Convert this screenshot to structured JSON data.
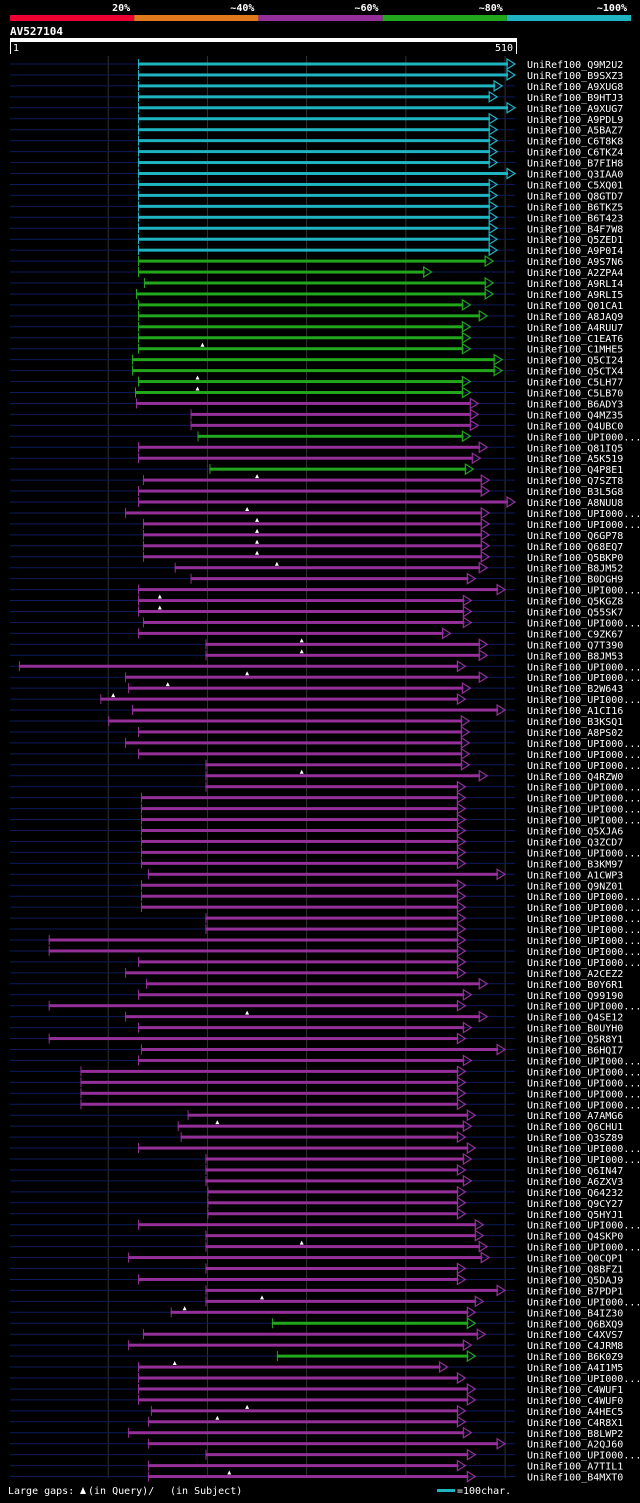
{
  "chart_data": {
    "type": "blast-alignment-overview",
    "query": {
      "name": "AV527104",
      "start": 1,
      "end": 510,
      "start_label": "1",
      "end_label": "510"
    },
    "color_scale": [
      {
        "label": "20%",
        "color": "#ee0033"
      },
      {
        "label": "~40%",
        "color": "#e07a1c"
      },
      {
        "label": "~60%",
        "color": "#952f99"
      },
      {
        "label": "~80%",
        "color": "#21a61c"
      },
      {
        "label": "~100%",
        "color": "#1fb4c1"
      }
    ],
    "footer": {
      "gaps_label": "Large gaps:",
      "gaps_query": "(in Query)/",
      "gaps_subject": "(in Subject)",
      "scale_label": "=100char."
    },
    "hits": [
      {
        "name": "UniRef100_Q9M2U2",
        "start": 130,
        "end": 510,
        "identity": "~100%",
        "arrow": "long"
      },
      {
        "name": "UniRef100_B9SXZ3",
        "start": 130,
        "end": 510,
        "identity": "~100%",
        "arrow": "long"
      },
      {
        "name": "UniRef100_A9XUG8",
        "start": 130,
        "end": 497,
        "identity": "~100%"
      },
      {
        "name": "UniRef100_B9HTJ3",
        "start": 130,
        "end": 492,
        "identity": "~100%"
      },
      {
        "name": "UniRef100_A9XUG7",
        "start": 130,
        "end": 510,
        "identity": "~100%",
        "arrow": "long"
      },
      {
        "name": "UniRef100_A9PDL9",
        "start": 130,
        "end": 492,
        "identity": "~100%"
      },
      {
        "name": "UniRef100_A5BAZ7",
        "start": 130,
        "end": 492,
        "identity": "~100%"
      },
      {
        "name": "UniRef100_C6T8K8",
        "start": 130,
        "end": 492,
        "identity": "~100%"
      },
      {
        "name": "UniRef100_C6TKZ4",
        "start": 130,
        "end": 492,
        "identity": "~100%"
      },
      {
        "name": "UniRef100_B7FIH8",
        "start": 130,
        "end": 492,
        "identity": "~100%"
      },
      {
        "name": "UniRef100_Q3IAA0",
        "start": 130,
        "end": 510,
        "identity": "~100%",
        "arrow": "long"
      },
      {
        "name": "UniRef100_C5XQ01",
        "start": 130,
        "end": 492,
        "identity": "~100%"
      },
      {
        "name": "UniRef100_Q8GTD7",
        "start": 130,
        "end": 492,
        "identity": "~100%"
      },
      {
        "name": "UniRef100_B6TKZ5",
        "start": 130,
        "end": 492,
        "identity": "~100%"
      },
      {
        "name": "UniRef100_B6T423",
        "start": 130,
        "end": 492,
        "identity": "~100%"
      },
      {
        "name": "UniRef100_B4F7W8",
        "start": 130,
        "end": 492,
        "identity": "~100%"
      },
      {
        "name": "UniRef100_Q5ZED1",
        "start": 130,
        "end": 492,
        "identity": "~100%"
      },
      {
        "name": "UniRef100_A9P0I4",
        "start": 130,
        "end": 492,
        "identity": "~100%"
      },
      {
        "name": "UniRef100_A9S7N6",
        "start": 130,
        "end": 488,
        "identity": "~80%"
      },
      {
        "name": "UniRef100_A2ZPA4",
        "start": 130,
        "end": 426,
        "identity": "~80%"
      },
      {
        "name": "UniRef100_A9RLI4",
        "start": 136,
        "end": 488,
        "identity": "~80%"
      },
      {
        "name": "UniRef100_A9RLI5",
        "start": 128,
        "end": 488,
        "identity": "~80%"
      },
      {
        "name": "UniRef100_Q01CA1",
        "start": 130,
        "end": 465,
        "identity": "~80%"
      },
      {
        "name": "UniRef100_A8JAQ9",
        "start": 130,
        "end": 482,
        "identity": "~80%"
      },
      {
        "name": "UniRef100_A4RUU7",
        "start": 130,
        "end": 465,
        "identity": "~80%"
      },
      {
        "name": "UniRef100_C1EAT6",
        "start": 130,
        "end": 465,
        "identity": "~80%"
      },
      {
        "name": "UniRef100_C1MHE5",
        "start": 130,
        "end": 465,
        "identity": "~80%",
        "marker": 195
      },
      {
        "name": "UniRef100_Q5CI24",
        "start": 124,
        "end": 497,
        "identity": "~80%"
      },
      {
        "name": "UniRef100_Q5CTX4",
        "start": 124,
        "end": 497,
        "identity": "~80%"
      },
      {
        "name": "UniRef100_C5LH77",
        "start": 130,
        "end": 465,
        "identity": "~80%",
        "marker": 190
      },
      {
        "name": "UniRef100_C5LB70",
        "start": 127,
        "end": 465,
        "identity": "~80%",
        "marker": 190
      },
      {
        "name": "UniRef100_B6ADY3",
        "start": 128,
        "end": 473,
        "identity": "~60%"
      },
      {
        "name": "UniRef100_Q4MZ35",
        "start": 183,
        "end": 473,
        "identity": "~60%"
      },
      {
        "name": "UniRef100_Q4UBC0",
        "start": 183,
        "end": 473,
        "identity": "~60%"
      },
      {
        "name": "UniRef100_UPI000...",
        "start": 190,
        "end": 465,
        "identity": "~80%"
      },
      {
        "name": "UniRef100_Q81IQ5",
        "start": 130,
        "end": 482,
        "identity": "~60%"
      },
      {
        "name": "UniRef100_A5K519",
        "start": 130,
        "end": 475,
        "identity": "~60%"
      },
      {
        "name": "UniRef100_Q4P8E1",
        "start": 202,
        "end": 468,
        "identity": "~80%"
      },
      {
        "name": "UniRef100_Q7SZT8",
        "start": 135,
        "end": 484,
        "identity": "~60%",
        "marker": 250
      },
      {
        "name": "UniRef100_B3L5G8",
        "start": 130,
        "end": 484,
        "identity": "~60%"
      },
      {
        "name": "UniRef100_A8NUU8",
        "start": 130,
        "end": 510,
        "identity": "~60%",
        "arrow": "long"
      },
      {
        "name": "UniRef100_UPI000...",
        "start": 117,
        "end": 484,
        "identity": "~60%",
        "marker": 240
      },
      {
        "name": "UniRef100_UPI000...",
        "start": 135,
        "end": 484,
        "identity": "~60%",
        "marker": 250
      },
      {
        "name": "UniRef100_Q6GP78",
        "start": 135,
        "end": 484,
        "identity": "~60%",
        "marker": 250
      },
      {
        "name": "UniRef100_Q68EQ7",
        "start": 135,
        "end": 484,
        "identity": "~60%",
        "marker": 250
      },
      {
        "name": "UniRef100_Q5BKP0",
        "start": 135,
        "end": 484,
        "identity": "~60%",
        "marker": 250
      },
      {
        "name": "UniRef100_B8JM52",
        "start": 167,
        "end": 482,
        "identity": "~60%",
        "marker": 270
      },
      {
        "name": "UniRef100_B0DGH9",
        "start": 183,
        "end": 470,
        "identity": "~60%"
      },
      {
        "name": "UniRef100_UPI000...",
        "start": 130,
        "end": 500,
        "identity": "~60%"
      },
      {
        "name": "UniRef100_Q5KGZ8",
        "start": 130,
        "end": 466,
        "identity": "~60%",
        "marker": 152
      },
      {
        "name": "UniRef100_Q55SK7",
        "start": 130,
        "end": 466,
        "identity": "~60%",
        "marker": 152
      },
      {
        "name": "UniRef100_UPI000...",
        "start": 135,
        "end": 466,
        "identity": "~60%"
      },
      {
        "name": "UniRef100_C9ZK67",
        "start": 130,
        "end": 445,
        "identity": "~60%"
      },
      {
        "name": "UniRef100_Q7T390",
        "start": 198,
        "end": 482,
        "identity": "~60%",
        "marker": 295
      },
      {
        "name": "UniRef100_B8JM53",
        "start": 198,
        "end": 482,
        "identity": "~60%",
        "marker": 295
      },
      {
        "name": "UniRef100_UPI000...",
        "start": 10,
        "end": 460,
        "identity": "~60%"
      },
      {
        "name": "UniRef100_UPI000...",
        "start": 117,
        "end": 482,
        "identity": "~60%",
        "marker": 240
      },
      {
        "name": "UniRef100_B2W643",
        "start": 120,
        "end": 465,
        "identity": "~60%",
        "marker": 160
      },
      {
        "name": "UniRef100_UPI000...",
        "start": 92,
        "end": 460,
        "identity": "~60%",
        "marker": 105
      },
      {
        "name": "UniRef100_A1CI16",
        "start": 124,
        "end": 500,
        "identity": "~60%"
      },
      {
        "name": "UniRef100_B3KSQ1",
        "start": 100,
        "end": 464,
        "identity": "~60%"
      },
      {
        "name": "UniRef100_A8PS02",
        "start": 130,
        "end": 464,
        "identity": "~60%"
      },
      {
        "name": "UniRef100_UPI000...",
        "start": 117,
        "end": 464,
        "identity": "~60%"
      },
      {
        "name": "UniRef100_UPI000...",
        "start": 130,
        "end": 464,
        "identity": "~60%"
      },
      {
        "name": "UniRef100_UPI000...",
        "start": 198,
        "end": 464,
        "identity": "~60%"
      },
      {
        "name": "UniRef100_Q4RZW0",
        "start": 198,
        "end": 482,
        "identity": "~60%",
        "marker": 295
      },
      {
        "name": "UniRef100_UPI000...",
        "start": 198,
        "end": 460,
        "identity": "~60%"
      },
      {
        "name": "UniRef100_UPI000...",
        "start": 133,
        "end": 460,
        "identity": "~60%"
      },
      {
        "name": "UniRef100_UPI000...",
        "start": 133,
        "end": 460,
        "identity": "~60%"
      },
      {
        "name": "UniRef100_UPI000...",
        "start": 133,
        "end": 460,
        "identity": "~60%"
      },
      {
        "name": "UniRef100_Q5XJA6",
        "start": 133,
        "end": 460,
        "identity": "~60%"
      },
      {
        "name": "UniRef100_Q3ZCD7",
        "start": 133,
        "end": 460,
        "identity": "~60%"
      },
      {
        "name": "UniRef100_UPI000...",
        "start": 133,
        "end": 460,
        "identity": "~60%"
      },
      {
        "name": "UniRef100_B3KM97",
        "start": 133,
        "end": 460,
        "identity": "~60%"
      },
      {
        "name": "UniRef100_A1CWP3",
        "start": 140,
        "end": 500,
        "identity": "~60%"
      },
      {
        "name": "UniRef100_Q9NZ01",
        "start": 133,
        "end": 460,
        "identity": "~60%"
      },
      {
        "name": "UniRef100_UPI000...",
        "start": 133,
        "end": 460,
        "identity": "~60%"
      },
      {
        "name": "UniRef100_UPI000...",
        "start": 133,
        "end": 460,
        "identity": "~60%"
      },
      {
        "name": "UniRef100_UPI000...",
        "start": 198,
        "end": 460,
        "identity": "~60%"
      },
      {
        "name": "UniRef100_UPI000...",
        "start": 198,
        "end": 460,
        "identity": "~60%"
      },
      {
        "name": "UniRef100_UPI000...",
        "start": 40,
        "end": 460,
        "identity": "~60%"
      },
      {
        "name": "UniRef100_UPI000...",
        "start": 40,
        "end": 460,
        "identity": "~60%"
      },
      {
        "name": "UniRef100_UPI000...",
        "start": 130,
        "end": 460,
        "identity": "~60%"
      },
      {
        "name": "UniRef100_A2CEZ2",
        "start": 117,
        "end": 460,
        "identity": "~60%"
      },
      {
        "name": "UniRef100_B0Y6R1",
        "start": 138,
        "end": 482,
        "identity": "~60%"
      },
      {
        "name": "UniRef100_Q99190",
        "start": 130,
        "end": 466,
        "identity": "~60%"
      },
      {
        "name": "UniRef100_UPI000...",
        "start": 40,
        "end": 460,
        "identity": "~60%"
      },
      {
        "name": "UniRef100_Q4SE12",
        "start": 117,
        "end": 482,
        "identity": "~60%",
        "marker": 240
      },
      {
        "name": "UniRef100_B0UYH0",
        "start": 130,
        "end": 466,
        "identity": "~60%"
      },
      {
        "name": "UniRef100_Q5R8Y1",
        "start": 40,
        "end": 460,
        "identity": "~60%"
      },
      {
        "name": "UniRef100_B6HQI7",
        "start": 133,
        "end": 500,
        "identity": "~60%"
      },
      {
        "name": "UniRef100_UPI000...",
        "start": 130,
        "end": 466,
        "identity": "~60%"
      },
      {
        "name": "UniRef100_UPI000...",
        "start": 72,
        "end": 460,
        "identity": "~60%"
      },
      {
        "name": "UniRef100_UPI000...",
        "start": 72,
        "end": 460,
        "identity": "~60%"
      },
      {
        "name": "UniRef100_UPI000...",
        "start": 72,
        "end": 460,
        "identity": "~60%"
      },
      {
        "name": "UniRef100_UPI000...",
        "start": 72,
        "end": 460,
        "identity": "~60%"
      },
      {
        "name": "UniRef100_A7AMG6",
        "start": 180,
        "end": 470,
        "identity": "~60%"
      },
      {
        "name": "UniRef100_Q6CHU1",
        "start": 170,
        "end": 466,
        "identity": "~60%",
        "marker": 210
      },
      {
        "name": "UniRef100_Q3SZ89",
        "start": 173,
        "end": 460,
        "identity": "~60%"
      },
      {
        "name": "UniRef100_UPI000...",
        "start": 130,
        "end": 470,
        "identity": "~60%"
      },
      {
        "name": "UniRef100_UPI000...",
        "start": 198,
        "end": 466,
        "identity": "~60%"
      },
      {
        "name": "UniRef100_Q6IN47",
        "start": 198,
        "end": 460,
        "identity": "~60%"
      },
      {
        "name": "UniRef100_A6ZXV3",
        "start": 198,
        "end": 466,
        "identity": "~60%"
      },
      {
        "name": "UniRef100_Q64232",
        "start": 200,
        "end": 460,
        "identity": "~60%"
      },
      {
        "name": "UniRef100_Q9CY27",
        "start": 200,
        "end": 460,
        "identity": "~60%"
      },
      {
        "name": "UniRef100_Q5HYJ1",
        "start": 200,
        "end": 460,
        "identity": "~60%"
      },
      {
        "name": "UniRef100_UPI000...",
        "start": 130,
        "end": 478,
        "identity": "~60%"
      },
      {
        "name": "UniRef100_Q4SKP0",
        "start": 198,
        "end": 478,
        "identity": "~60%"
      },
      {
        "name": "UniRef100_UPI000...",
        "start": 198,
        "end": 482,
        "identity": "~60%",
        "marker": 295
      },
      {
        "name": "UniRef100_Q0CQP1",
        "start": 120,
        "end": 484,
        "identity": "~60%"
      },
      {
        "name": "UniRef100_Q8BFZ1",
        "start": 198,
        "end": 460,
        "identity": "~60%"
      },
      {
        "name": "UniRef100_Q5DAJ9",
        "start": 130,
        "end": 460,
        "identity": "~60%"
      },
      {
        "name": "UniRef100_B7PDP1",
        "start": 198,
        "end": 500,
        "identity": "~60%"
      },
      {
        "name": "UniRef100_UPI000...",
        "start": 198,
        "end": 478,
        "identity": "~60%",
        "marker": 255
      },
      {
        "name": "UniRef100_B4IZ30",
        "start": 163,
        "end": 470,
        "identity": "~60%",
        "marker": 177
      },
      {
        "name": "UniRef100_Q6BXQ9",
        "start": 265,
        "end": 470,
        "identity": "~80%"
      },
      {
        "name": "UniRef100_C4XVS7",
        "start": 135,
        "end": 480,
        "identity": "~60%"
      },
      {
        "name": "UniRef100_C4JRM8",
        "start": 120,
        "end": 466,
        "identity": "~60%"
      },
      {
        "name": "UniRef100_B6K0Z9",
        "start": 270,
        "end": 470,
        "identity": "~80%"
      },
      {
        "name": "UniRef100_A4I1M5",
        "start": 130,
        "end": 442,
        "identity": "~60%",
        "marker": 167
      },
      {
        "name": "UniRef100_UPI000...",
        "start": 130,
        "end": 460,
        "identity": "~60%"
      },
      {
        "name": "UniRef100_C4WUF1",
        "start": 130,
        "end": 470,
        "identity": "~60%"
      },
      {
        "name": "UniRef100_C4WUF0",
        "start": 130,
        "end": 470,
        "identity": "~60%"
      },
      {
        "name": "UniRef100_A4HEC5",
        "start": 143,
        "end": 460,
        "identity": "~60%",
        "marker": 240
      },
      {
        "name": "UniRef100_C4R8X1",
        "start": 140,
        "end": 460,
        "identity": "~60%",
        "marker": 210
      },
      {
        "name": "UniRef100_B8LWP2",
        "start": 120,
        "end": 466,
        "identity": "~60%"
      },
      {
        "name": "UniRef100_A2QJ60",
        "start": 140,
        "end": 500,
        "identity": "~60%"
      },
      {
        "name": "UniRef100_UPI000...",
        "start": 198,
        "end": 470,
        "identity": "~60%"
      },
      {
        "name": "UniRef100_A7TIL1",
        "start": 140,
        "end": 460,
        "identity": "~60%"
      },
      {
        "name": "UniRef100_B4MXT0",
        "start": 140,
        "end": 470,
        "identity": "~60%",
        "marker": 222
      }
    ]
  }
}
